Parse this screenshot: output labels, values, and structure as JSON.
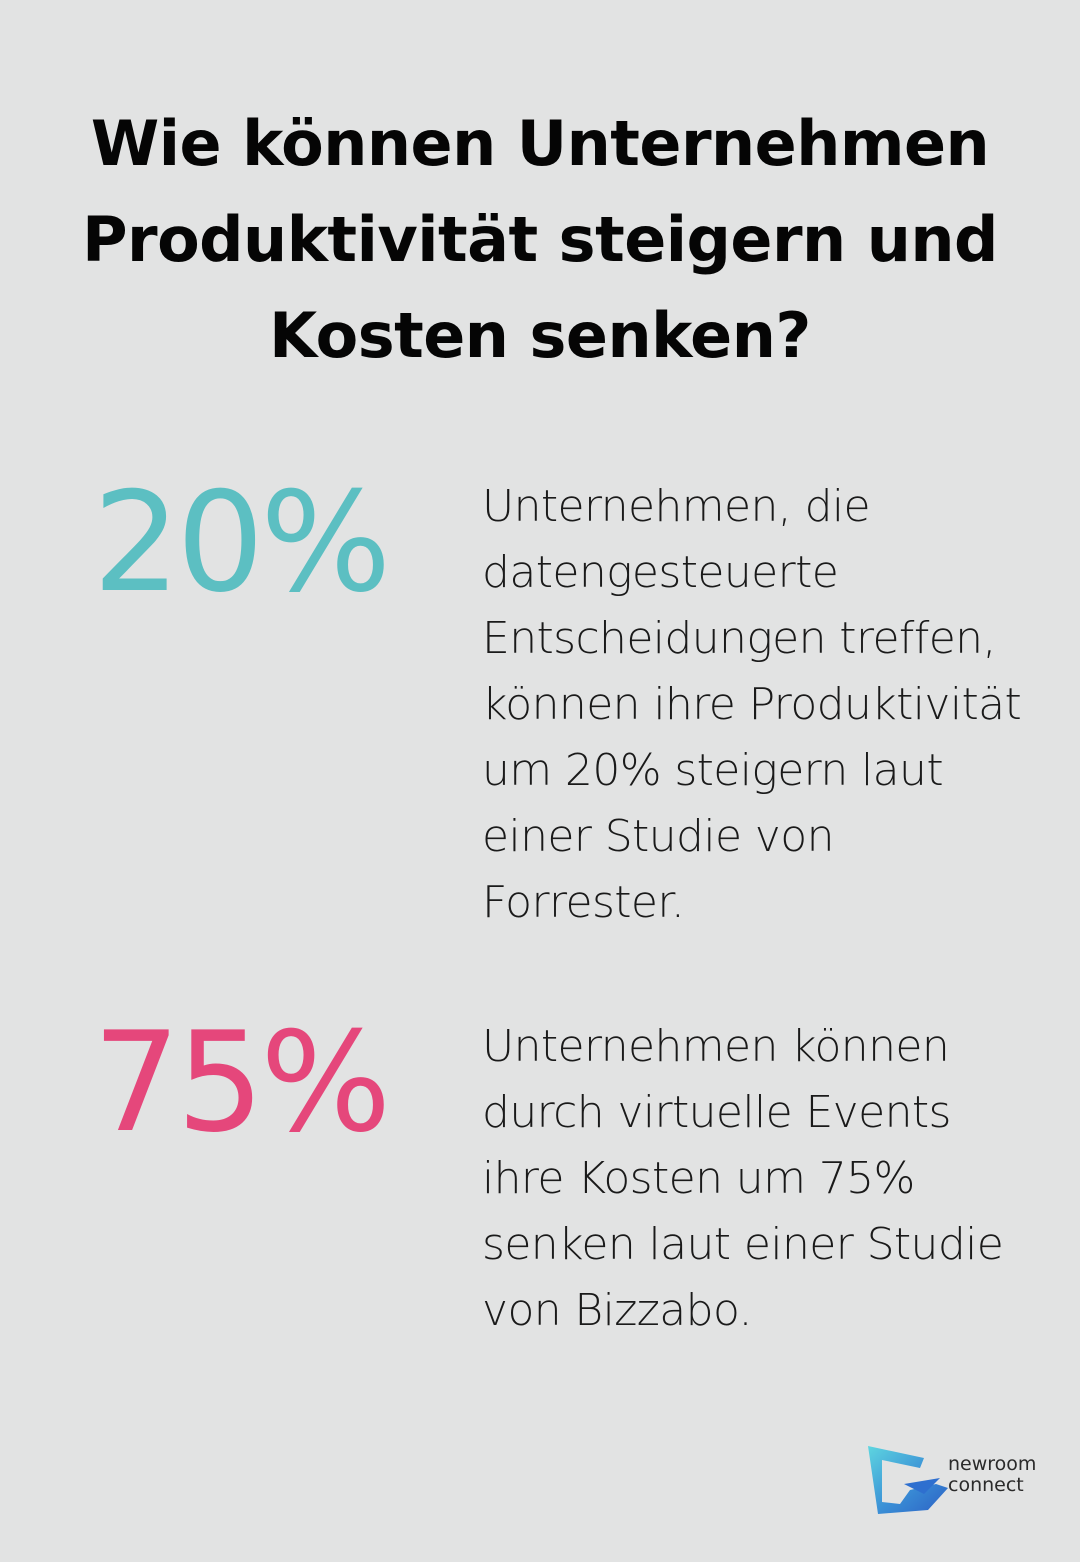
{
  "title": "Wie können Unternehmen Produktivität steigern und Kosten senken?",
  "stats": [
    {
      "number": "20%",
      "color": "#5cbfc2",
      "text": "Unternehmen, die datengesteuerte Entscheidungen treffen, können ihre Produktivität um 20% steigern laut einer Studie von Forrester."
    },
    {
      "number": "75%",
      "color": "#e5477b",
      "text": "Unternehmen können durch virtuelle Events ihre Kosten um 75% senken laut einer Studie von Bizzabo."
    }
  ],
  "logo": {
    "line1": "newroom",
    "line2": "connect",
    "icon": "newroom-connect-logo-icon",
    "colors": [
      "#5ed6e0",
      "#3a8fd6",
      "#2b5fc4"
    ]
  }
}
